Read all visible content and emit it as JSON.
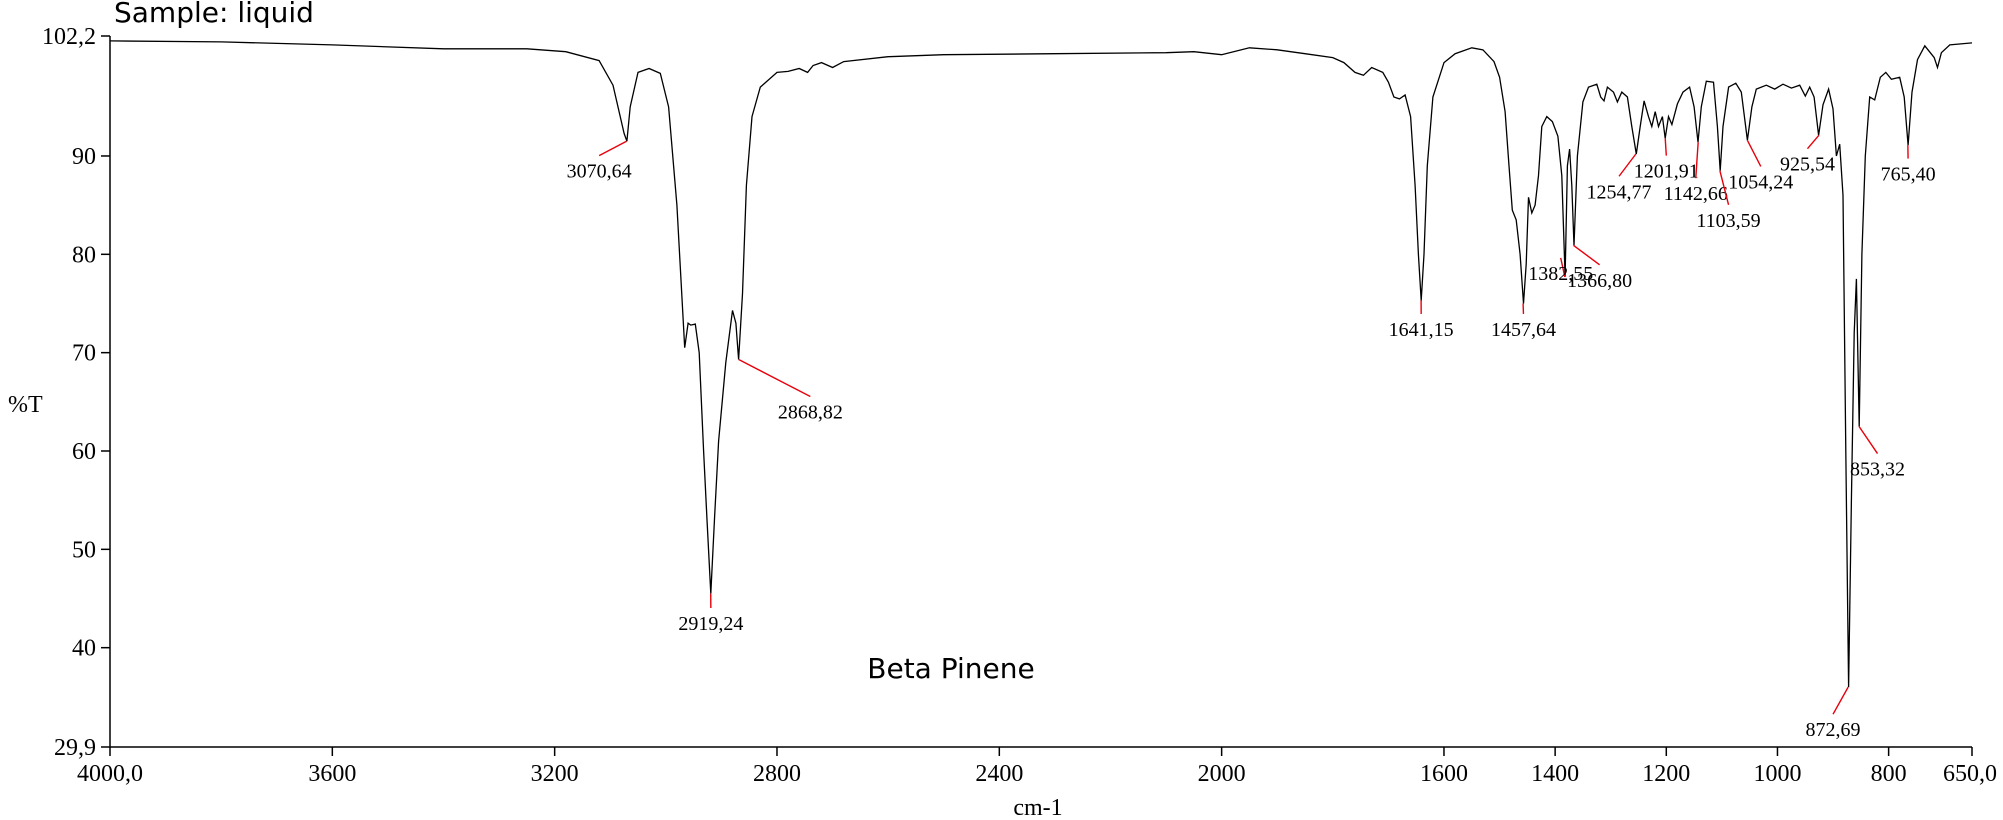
{
  "chart_data": {
    "type": "line",
    "title": "",
    "xlabel": "cm-1",
    "ylabel": "%T",
    "xlim": [
      4000.0,
      650.0
    ],
    "ylim": [
      29.9,
      102.2
    ],
    "x_reversed": true,
    "grid": false,
    "legend": "none",
    "line_color": "#000000",
    "marker_color": "#e8000b",
    "x_ticks": [
      {
        "value": 4000,
        "label": "4000,0"
      },
      {
        "value": 3600,
        "label": "3600"
      },
      {
        "value": 3200,
        "label": "3200"
      },
      {
        "value": 2800,
        "label": "2800"
      },
      {
        "value": 2400,
        "label": "2400"
      },
      {
        "value": 2000,
        "label": "2000"
      },
      {
        "value": 1600,
        "label": "1600"
      },
      {
        "value": 1400,
        "label": "1400"
      },
      {
        "value": 1200,
        "label": "1200"
      },
      {
        "value": 1000,
        "label": "1000"
      },
      {
        "value": 800,
        "label": "800"
      },
      {
        "value": 650,
        "label": "650,0"
      }
    ],
    "y_ticks": [
      {
        "value": 102.2,
        "label": "102,2"
      },
      {
        "value": 90,
        "label": "90"
      },
      {
        "value": 80,
        "label": "80"
      },
      {
        "value": 70,
        "label": "70"
      },
      {
        "value": 60,
        "label": "60"
      },
      {
        "value": 50,
        "label": "50"
      },
      {
        "value": 40,
        "label": "40"
      },
      {
        "value": 29.9,
        "label": "29,9"
      }
    ],
    "annotations": {
      "sample": "Sample: liquid",
      "compound": "Beta Pinene"
    },
    "peaks": [
      {
        "x": 3070.64,
        "y": 91.5,
        "label": "3070,64",
        "label_x": 3120,
        "label_y": 87.8
      },
      {
        "x": 2919.24,
        "y": 45.5,
        "label": "2919,24",
        "label_x": 2919,
        "label_y": 41.8
      },
      {
        "x": 2868.82,
        "y": 69.3,
        "label": "2868,82",
        "label_x": 2740,
        "label_y": 63.3
      },
      {
        "x": 1641.15,
        "y": 75.3,
        "label": "1641,15",
        "label_x": 1641,
        "label_y": 71.7
      },
      {
        "x": 1457.64,
        "y": 75.0,
        "label": "1457,64",
        "label_x": 1457,
        "label_y": 71.7
      },
      {
        "x": 1382.55,
        "y": 77.7,
        "label": "1382,55",
        "label_x": 1390,
        "label_y": 77.4
      },
      {
        "x": 1366.8,
        "y": 80.9,
        "label": "1366,80",
        "label_x": 1320,
        "label_y": 76.7
      },
      {
        "x": 1254.77,
        "y": 90.2,
        "label": "1254,77",
        "label_x": 1285,
        "label_y": 85.7
      },
      {
        "x": 1201.91,
        "y": 91.8,
        "label": "1201,91",
        "label_x": 1200,
        "label_y": 87.8
      },
      {
        "x": 1142.66,
        "y": 91.4,
        "label": "1142,66",
        "label_x": 1147,
        "label_y": 85.5
      },
      {
        "x": 1103.59,
        "y": 88.5,
        "label": "1103,59",
        "label_x": 1088,
        "label_y": 82.8
      },
      {
        "x": 1054.24,
        "y": 91.6,
        "label": "1054,24",
        "label_x": 1030,
        "label_y": 86.7
      },
      {
        "x": 925.54,
        "y": 92.1,
        "label": "925,54",
        "label_x": 946,
        "label_y": 88.5
      },
      {
        "x": 872.69,
        "y": 36.0,
        "label": "872,69",
        "label_x": 900,
        "label_y": 31.0
      },
      {
        "x": 853.32,
        "y": 62.5,
        "label": "853,32",
        "label_x": 820,
        "label_y": 57.5
      },
      {
        "x": 765.4,
        "y": 91.1,
        "label": "765,40",
        "label_x": 765,
        "label_y": 87.5
      }
    ],
    "spectrum": [
      [
        4000,
        101.7
      ],
      [
        3800,
        101.6
      ],
      [
        3600,
        101.3
      ],
      [
        3400,
        100.9
      ],
      [
        3250,
        100.9
      ],
      [
        3180,
        100.6
      ],
      [
        3120,
        99.7
      ],
      [
        3095,
        97.2
      ],
      [
        3075,
        92.3
      ],
      [
        3070,
        91.5
      ],
      [
        3064,
        95.0
      ],
      [
        3050,
        98.5
      ],
      [
        3030,
        98.9
      ],
      [
        3010,
        98.4
      ],
      [
        2995,
        95.0
      ],
      [
        2980,
        85.0
      ],
      [
        2966,
        70.5
      ],
      [
        2960,
        73.0
      ],
      [
        2955,
        72.8
      ],
      [
        2947,
        72.9
      ],
      [
        2940,
        70.0
      ],
      [
        2932,
        60.0
      ],
      [
        2926,
        53.0
      ],
      [
        2919,
        45.5
      ],
      [
        2912,
        53.5
      ],
      [
        2905,
        61.0
      ],
      [
        2892,
        69.0
      ],
      [
        2880,
        74.3
      ],
      [
        2874,
        73.0
      ],
      [
        2869,
        69.3
      ],
      [
        2862,
        76.0
      ],
      [
        2855,
        87.0
      ],
      [
        2845,
        94.0
      ],
      [
        2830,
        97.0
      ],
      [
        2800,
        98.5
      ],
      [
        2780,
        98.6
      ],
      [
        2760,
        98.9
      ],
      [
        2745,
        98.5
      ],
      [
        2735,
        99.2
      ],
      [
        2720,
        99.5
      ],
      [
        2700,
        99.0
      ],
      [
        2680,
        99.6
      ],
      [
        2600,
        100.1
      ],
      [
        2500,
        100.3
      ],
      [
        2300,
        100.4
      ],
      [
        2100,
        100.5
      ],
      [
        2050,
        100.6
      ],
      [
        2000,
        100.3
      ],
      [
        1950,
        101.0
      ],
      [
        1900,
        100.8
      ],
      [
        1850,
        100.4
      ],
      [
        1800,
        100.0
      ],
      [
        1780,
        99.5
      ],
      [
        1760,
        98.5
      ],
      [
        1745,
        98.2
      ],
      [
        1730,
        99.0
      ],
      [
        1710,
        98.5
      ],
      [
        1700,
        97.5
      ],
      [
        1690,
        96.0
      ],
      [
        1680,
        95.8
      ],
      [
        1670,
        96.2
      ],
      [
        1660,
        94.0
      ],
      [
        1652,
        87.0
      ],
      [
        1646,
        80.0
      ],
      [
        1641,
        75.3
      ],
      [
        1636,
        80.0
      ],
      [
        1630,
        89.0
      ],
      [
        1620,
        96.0
      ],
      [
        1600,
        99.5
      ],
      [
        1580,
        100.4
      ],
      [
        1550,
        101.0
      ],
      [
        1530,
        100.8
      ],
      [
        1510,
        99.6
      ],
      [
        1500,
        98.0
      ],
      [
        1490,
        94.5
      ],
      [
        1483,
        89.0
      ],
      [
        1477,
        84.5
      ],
      [
        1470,
        83.5
      ],
      [
        1463,
        80.0
      ],
      [
        1457,
        75.0
      ],
      [
        1452,
        79.0
      ],
      [
        1448,
        85.8
      ],
      [
        1442,
        84.2
      ],
      [
        1436,
        85.0
      ],
      [
        1430,
        88.0
      ],
      [
        1424,
        93.0
      ],
      [
        1415,
        94.0
      ],
      [
        1405,
        93.5
      ],
      [
        1395,
        92.0
      ],
      [
        1388,
        88.0
      ],
      [
        1382,
        77.7
      ],
      [
        1378,
        89.0
      ],
      [
        1374,
        90.7
      ],
      [
        1370,
        87.0
      ],
      [
        1366,
        80.9
      ],
      [
        1360,
        90.0
      ],
      [
        1350,
        95.5
      ],
      [
        1340,
        97.0
      ],
      [
        1325,
        97.3
      ],
      [
        1318,
        96.0
      ],
      [
        1312,
        95.6
      ],
      [
        1306,
        97.0
      ],
      [
        1295,
        96.5
      ],
      [
        1288,
        95.5
      ],
      [
        1280,
        96.5
      ],
      [
        1270,
        96.0
      ],
      [
        1262,
        93.0
      ],
      [
        1254,
        90.2
      ],
      [
        1247,
        93.0
      ],
      [
        1240,
        95.6
      ],
      [
        1232,
        94.0
      ],
      [
        1226,
        93.0
      ],
      [
        1220,
        94.5
      ],
      [
        1214,
        93.0
      ],
      [
        1207,
        94.0
      ],
      [
        1202,
        91.8
      ],
      [
        1196,
        94.0
      ],
      [
        1190,
        93.2
      ],
      [
        1180,
        95.3
      ],
      [
        1170,
        96.5
      ],
      [
        1158,
        97.0
      ],
      [
        1150,
        95.0
      ],
      [
        1143,
        91.4
      ],
      [
        1137,
        95.0
      ],
      [
        1128,
        97.6
      ],
      [
        1115,
        97.5
      ],
      [
        1108,
        93.0
      ],
      [
        1103,
        88.5
      ],
      [
        1098,
        93.0
      ],
      [
        1088,
        97.0
      ],
      [
        1075,
        97.4
      ],
      [
        1065,
        96.5
      ],
      [
        1054,
        91.6
      ],
      [
        1046,
        95.0
      ],
      [
        1038,
        96.8
      ],
      [
        1020,
        97.2
      ],
      [
        1005,
        96.8
      ],
      [
        990,
        97.3
      ],
      [
        975,
        96.9
      ],
      [
        960,
        97.2
      ],
      [
        950,
        96.1
      ],
      [
        942,
        97.0
      ],
      [
        934,
        96.0
      ],
      [
        926,
        92.1
      ],
      [
        918,
        95.2
      ],
      [
        908,
        96.8
      ],
      [
        900,
        94.8
      ],
      [
        894,
        90.0
      ],
      [
        888,
        91.2
      ],
      [
        882,
        86.0
      ],
      [
        877,
        60.0
      ],
      [
        872,
        36.0
      ],
      [
        867,
        55.0
      ],
      [
        862,
        72.0
      ],
      [
        858,
        77.5
      ],
      [
        853,
        62.5
      ],
      [
        848,
        80.0
      ],
      [
        842,
        90.0
      ],
      [
        834,
        96.0
      ],
      [
        825,
        95.7
      ],
      [
        815,
        98.0
      ],
      [
        805,
        98.5
      ],
      [
        795,
        97.8
      ],
      [
        780,
        98.0
      ],
      [
        772,
        96.0
      ],
      [
        765,
        91.1
      ],
      [
        758,
        96.5
      ],
      [
        748,
        99.8
      ],
      [
        735,
        101.2
      ],
      [
        725,
        100.5
      ],
      [
        718,
        100.0
      ],
      [
        712,
        99.0
      ],
      [
        705,
        100.5
      ],
      [
        690,
        101.3
      ],
      [
        650,
        101.5
      ]
    ]
  }
}
